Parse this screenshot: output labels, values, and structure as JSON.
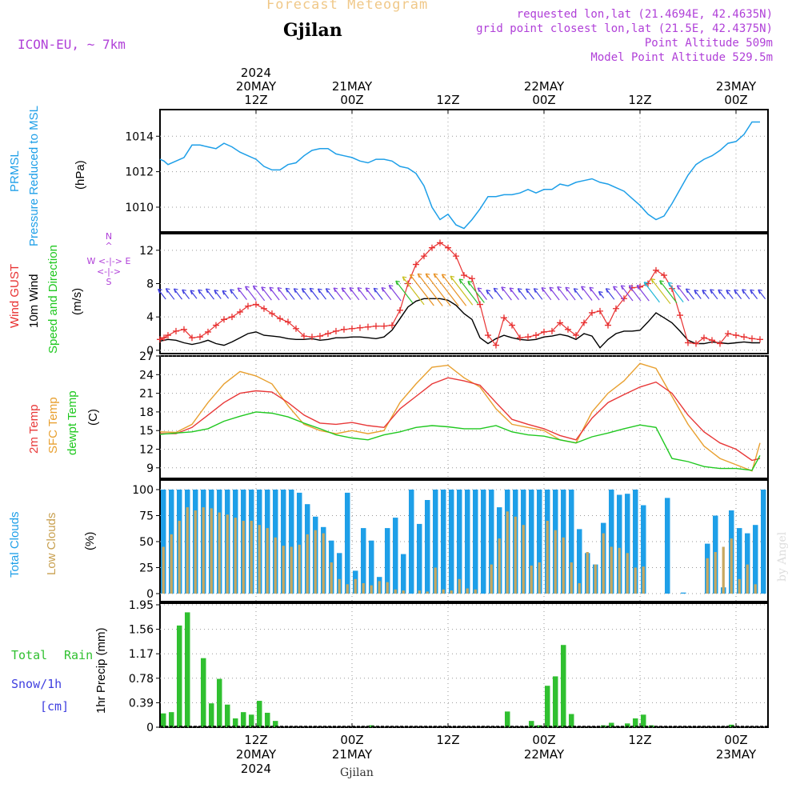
{
  "header": {
    "title": "Forecast Meteogram",
    "location": "Gjilan",
    "model": "ICON-EU, ~ 7km",
    "requested": "requested lon,lat (21.4694E, 42.4635N)",
    "grid_point": "grid point closest lon,lat (21.5E, 42.4375N)",
    "point_altitude": "Point Altitude 509m",
    "model_altitude": "Model Point Altitude 529.5m"
  },
  "footer": {
    "location": "Gjilan",
    "credit": "by Angel"
  },
  "time_axis": {
    "top_labels": [
      {
        "time": 12,
        "lines": [
          "2024",
          "20MAY",
          "12Z"
        ]
      },
      {
        "time": 24,
        "lines": [
          "21MAY",
          "00Z"
        ]
      },
      {
        "time": 36,
        "lines": [
          "12Z"
        ]
      },
      {
        "time": 48,
        "lines": [
          "22MAY",
          "00Z"
        ]
      },
      {
        "time": 60,
        "lines": [
          "12Z"
        ]
      },
      {
        "time": 72,
        "lines": [
          "23MAY",
          "00Z"
        ]
      }
    ],
    "bottom_labels": [
      {
        "time": 12,
        "lines": [
          "12Z",
          "20MAY",
          "2024"
        ]
      },
      {
        "time": 24,
        "lines": [
          "00Z",
          "21MAY"
        ]
      },
      {
        "time": 36,
        "lines": [
          "12Z"
        ]
      },
      {
        "time": 48,
        "lines": [
          "00Z",
          "22MAY"
        ]
      },
      {
        "time": 60,
        "lines": [
          "12Z"
        ]
      },
      {
        "time": 72,
        "lines": [
          "00Z",
          "23MAY"
        ]
      }
    ]
  },
  "panel_labels": {
    "pressure": {
      "name": "PRMSL",
      "desc": "Pressure Reduced to MSL",
      "unit": "(hPa)"
    },
    "wind": {
      "gust": "Wind GUST",
      "wind10": "10m Wind",
      "dir": "Speed and Direction",
      "unit": "(m/s)"
    },
    "compass": {
      "n": "N",
      "s": "S",
      "e": "E",
      "w": "W",
      "row1": "W <-|-> E",
      "row2": "<-|->"
    },
    "temp": {
      "t2m": "2m Temp",
      "sfc": "SFC Temp",
      "dewpt": "dewpt Temp",
      "unit": "(C)"
    },
    "clouds": {
      "total": "Total Clouds",
      "low": "Low Clouds",
      "unit": "(%)"
    },
    "precip": {
      "total": "Total",
      "rain": "Rain",
      "snow": "Snow/1h",
      "snow_unit": "[cm]",
      "unit": "1hr Precip (mm)"
    }
  },
  "colors": {
    "pressure": "#1e9fe8",
    "gust": "#e83030",
    "wind10": "#000000",
    "t2m": "#e83838",
    "sfc": "#e8a030",
    "dewpt": "#20c820",
    "total_clouds": "#1e9fe8",
    "low_clouds": "#c8a860",
    "rain": "#30c030",
    "header": "#b040d8",
    "title": "#f0c888"
  },
  "chart_data": [
    {
      "type": "line",
      "panel": "pressure",
      "title": "PRMSL Pressure Reduced to MSL",
      "ylabel": "(hPa)",
      "ylim": [
        1008.6,
        1015.5
      ],
      "yticks": [
        1010,
        1012,
        1014
      ],
      "xlim": [
        0,
        76
      ],
      "x": [
        0,
        0.5,
        1,
        2,
        3,
        4,
        5,
        6,
        7,
        8,
        9,
        10,
        11,
        12,
        13,
        14,
        15,
        16,
        17,
        18,
        19,
        20,
        21,
        22,
        23,
        24,
        25,
        26,
        27,
        28,
        29,
        30,
        31,
        32,
        33,
        34,
        35,
        36,
        37,
        38,
        39,
        40,
        41,
        42,
        43,
        44,
        45,
        46,
        47,
        48,
        49,
        50,
        51,
        52,
        53,
        54,
        55,
        56,
        57,
        58,
        59,
        60,
        61,
        62,
        63,
        64,
        65,
        66,
        67,
        68,
        69,
        70,
        71,
        72,
        73,
        74,
        75
      ],
      "values": [
        1012.7,
        1012.6,
        1012.4,
        1012.6,
        1012.8,
        1013.5,
        1013.5,
        1013.4,
        1013.3,
        1013.6,
        1013.4,
        1013.1,
        1012.9,
        1012.7,
        1012.3,
        1012.1,
        1012.1,
        1012.4,
        1012.5,
        1012.9,
        1013.2,
        1013.3,
        1013.3,
        1013.0,
        1012.9,
        1012.8,
        1012.6,
        1012.5,
        1012.7,
        1012.7,
        1012.6,
        1012.3,
        1012.2,
        1011.9,
        1011.2,
        1010.0,
        1009.3,
        1009.6,
        1009.0,
        1008.8,
        1009.3,
        1009.9,
        1010.6,
        1010.6,
        1010.7,
        1010.7,
        1010.8,
        1011.0,
        1010.8,
        1011.0,
        1011.0,
        1011.3,
        1011.2,
        1011.4,
        1011.5,
        1011.6,
        1011.4,
        1011.3,
        1011.1,
        1010.9,
        1010.5,
        1010.1,
        1009.6,
        1009.3,
        1009.5,
        1010.2,
        1011.0,
        1011.8,
        1012.4,
        1012.7,
        1012.9,
        1013.2,
        1013.6,
        1013.7,
        1014.1,
        1014.8,
        1014.8
      ]
    },
    {
      "type": "line",
      "panel": "wind",
      "title": "Wind GUST / 10m Wind Speed and Direction",
      "ylabel": "(m/s)",
      "ylim": [
        0,
        14
      ],
      "yticks": [
        0,
        4,
        8,
        12
      ],
      "xlim": [
        0,
        76
      ],
      "x": [
        0,
        0.5,
        1,
        2,
        3,
        4,
        5,
        6,
        7,
        8,
        9,
        10,
        11,
        12,
        13,
        14,
        15,
        16,
        17,
        18,
        19,
        20,
        21,
        22,
        23,
        24,
        25,
        26,
        27,
        28,
        29,
        30,
        31,
        32,
        33,
        34,
        35,
        36,
        37,
        38,
        39,
        40,
        41,
        42,
        43,
        44,
        45,
        46,
        47,
        48,
        49,
        50,
        51,
        52,
        53,
        54,
        55,
        56,
        57,
        58,
        59,
        60,
        61,
        62,
        63,
        64,
        65,
        66,
        67,
        68,
        69,
        70,
        71,
        72,
        73,
        74,
        75
      ],
      "series": [
        {
          "name": "Wind GUST",
          "values": [
            1.3,
            1.5,
            1.8,
            2.3,
            2.5,
            1.5,
            1.6,
            2.2,
            3.0,
            3.7,
            4.0,
            4.6,
            5.3,
            5.5,
            5.0,
            4.4,
            3.8,
            3.4,
            2.6,
            1.7,
            1.6,
            1.7,
            2.0,
            2.3,
            2.5,
            2.6,
            2.7,
            2.8,
            2.9,
            2.9,
            3.0,
            4.8,
            8.0,
            10.3,
            11.3,
            12.3,
            12.9,
            12.3,
            11.3,
            9.0,
            8.6,
            5.5,
            1.8,
            0.6,
            3.9,
            3.0,
            1.5,
            1.6,
            1.8,
            2.2,
            2.3,
            3.3,
            2.5,
            1.8,
            3.3,
            4.5,
            4.7,
            3.0,
            5.0,
            6.2,
            7.5,
            7.6,
            8.0,
            9.6,
            9.0,
            7.4,
            4.2,
            0.9,
            0.8,
            1.5,
            1.2,
            0.8,
            2.0,
            1.8,
            1.6,
            1.4,
            1.3
          ]
        },
        {
          "name": "10m Wind",
          "values": [
            1.1,
            1.2,
            1.3,
            1.2,
            0.9,
            0.7,
            0.9,
            1.2,
            0.8,
            0.6,
            1.0,
            1.5,
            2.0,
            2.2,
            1.8,
            1.7,
            1.6,
            1.4,
            1.3,
            1.3,
            1.4,
            1.2,
            1.3,
            1.5,
            1.5,
            1.6,
            1.6,
            1.5,
            1.4,
            1.6,
            2.4,
            3.8,
            5.2,
            5.9,
            6.2,
            6.2,
            6.2,
            6.0,
            5.4,
            4.4,
            3.7,
            1.5,
            0.8,
            1.4,
            1.8,
            1.5,
            1.3,
            1.2,
            1.3,
            1.6,
            1.7,
            1.9,
            1.7,
            1.3,
            2.0,
            1.7,
            0.3,
            1.3,
            2.0,
            2.3,
            2.3,
            2.4,
            3.4,
            4.5,
            3.9,
            3.3,
            2.3,
            1.2,
            0.8,
            0.8,
            1.0,
            0.9,
            0.8,
            0.9,
            1.0,
            0.9,
            0.9
          ]
        }
      ]
    },
    {
      "type": "line",
      "panel": "temperature",
      "title": "2m Temp / SFC Temp / dewpt Temp",
      "ylabel": "(C)",
      "ylim": [
        7.3,
        27
      ],
      "yticks": [
        9,
        12,
        15,
        18,
        21,
        24,
        27
      ],
      "xlim": [
        0,
        76
      ],
      "x": [
        0,
        2,
        4,
        6,
        8,
        10,
        12,
        14,
        16,
        18,
        20,
        22,
        24,
        26,
        28,
        30,
        32,
        34,
        36,
        38,
        40,
        42,
        44,
        46,
        48,
        50,
        52,
        54,
        56,
        58,
        60,
        62,
        64,
        66,
        68,
        70,
        72,
        74,
        75
      ],
      "series": [
        {
          "name": "2m Temp",
          "values": [
            14.5,
            14.5,
            15.5,
            17.5,
            19.5,
            21,
            21.4,
            21.2,
            19.5,
            17.5,
            16.2,
            16.0,
            16.3,
            15.8,
            15.5,
            18.5,
            20.5,
            22.5,
            23.5,
            23.0,
            22.3,
            19.5,
            16.8,
            16.0,
            15.3,
            14.2,
            13.5,
            17.0,
            19.5,
            20.8,
            22.0,
            22.8,
            21.0,
            17.5,
            14.8,
            13.0,
            12.0,
            10.2,
            10.5
          ]
        },
        {
          "name": "SFC Temp",
          "values": [
            14.8,
            14.7,
            16.0,
            19.5,
            22.5,
            24.5,
            23.8,
            22.5,
            19.0,
            16.0,
            15.0,
            14.5,
            15.0,
            14.5,
            15.0,
            19.5,
            22.5,
            25.2,
            25.5,
            23.5,
            22.0,
            18.5,
            16.0,
            15.5,
            15.0,
            13.5,
            13.0,
            18.0,
            21.0,
            23.0,
            25.8,
            25.0,
            20.5,
            16.0,
            12.5,
            10.5,
            9.5,
            8.5,
            13.0
          ]
        },
        {
          "name": "dewpt Temp",
          "values": [
            14.4,
            14.6,
            14.8,
            15.3,
            16.5,
            17.3,
            18.0,
            17.8,
            17.2,
            16.2,
            15.3,
            14.3,
            13.8,
            13.5,
            14.3,
            14.8,
            15.5,
            15.8,
            15.6,
            15.3,
            15.3,
            15.8,
            14.8,
            14.3,
            14.1,
            13.5,
            13.0,
            14.0,
            14.6,
            15.3,
            15.9,
            15.5,
            10.5,
            10.0,
            9.2,
            8.9,
            8.9,
            8.6,
            11.0
          ]
        }
      ]
    },
    {
      "type": "bar",
      "panel": "clouds",
      "title": "Total Clouds / Low Clouds",
      "ylabel": "(%)",
      "ylim": [
        0,
        100
      ],
      "yticks": [
        0,
        25,
        50,
        75,
        100
      ],
      "xlim": [
        0,
        76
      ],
      "categories": [
        0,
        1,
        2,
        3,
        4,
        5,
        6,
        7,
        8,
        9,
        10,
        11,
        12,
        13,
        14,
        15,
        16,
        17,
        18,
        19,
        20,
        21,
        22,
        23,
        24,
        25,
        26,
        27,
        28,
        29,
        30,
        31,
        32,
        33,
        34,
        35,
        36,
        37,
        38,
        39,
        40,
        41,
        42,
        43,
        44,
        45,
        46,
        47,
        48,
        49,
        50,
        51,
        52,
        53,
        54,
        55,
        56,
        57,
        58,
        59,
        60,
        61,
        62,
        63,
        64,
        65,
        66,
        67,
        68,
        69,
        70,
        71,
        72,
        73,
        74,
        75
      ],
      "series": [
        {
          "name": "Total Clouds",
          "values": [
            100,
            100,
            100,
            100,
            100,
            100,
            100,
            100,
            100,
            100,
            100,
            100,
            100,
            100,
            100,
            100,
            100,
            97,
            86,
            74,
            64,
            51,
            39,
            97,
            22,
            63,
            51,
            16,
            63,
            73,
            38,
            100,
            67,
            90,
            100,
            100,
            100,
            100,
            100,
            100,
            100,
            100,
            83,
            100,
            100,
            100,
            100,
            100,
            100,
            100,
            100,
            100,
            62,
            39,
            28,
            68,
            100,
            95,
            96,
            100,
            85,
            0,
            0,
            92,
            0,
            1,
            0,
            0,
            48,
            75,
            6,
            80,
            63,
            58,
            66,
            100
          ]
        },
        {
          "name": "Low Clouds",
          "values": [
            45,
            57,
            70,
            83,
            80,
            83,
            82,
            78,
            76,
            73,
            70,
            70,
            66,
            63,
            54,
            46,
            45,
            47,
            57,
            61,
            58,
            30,
            14,
            9,
            14,
            10,
            8,
            12,
            11,
            4,
            3,
            0,
            3,
            2,
            25,
            4,
            3,
            14,
            5,
            4,
            0,
            28,
            53,
            79,
            74,
            66,
            27,
            30,
            70,
            61,
            54,
            30,
            10,
            40,
            28,
            58,
            45,
            44,
            39,
            25,
            26,
            0,
            0,
            0,
            0,
            0,
            0,
            0,
            34,
            40,
            45,
            53,
            14,
            28,
            9,
            0
          ]
        }
      ]
    },
    {
      "type": "bar",
      "panel": "precip",
      "title": "Total Rain Snow/1h [cm]",
      "ylabel": "1hr Precip (mm)",
      "ylim": [
        0,
        1.95
      ],
      "yticks": [
        0,
        0.39,
        0.78,
        1.17,
        1.56,
        1.95
      ],
      "xlim": [
        0,
        76
      ],
      "categories": [
        0,
        1,
        2,
        3,
        4,
        5,
        6,
        7,
        8,
        9,
        10,
        11,
        12,
        13,
        14,
        15,
        16,
        17,
        18,
        19,
        20,
        21,
        22,
        23,
        24,
        25,
        26,
        27,
        28,
        29,
        30,
        31,
        32,
        33,
        34,
        35,
        36,
        37,
        38,
        39,
        40,
        41,
        42,
        43,
        44,
        45,
        46,
        47,
        48,
        49,
        50,
        51,
        52,
        53,
        54,
        55,
        56,
        57,
        58,
        59,
        60,
        61,
        62,
        63,
        64,
        65,
        66,
        67,
        68,
        69,
        70,
        71,
        72,
        73,
        74,
        75
      ],
      "series": [
        {
          "name": "Total Rain",
          "values": [
            0.22,
            0.24,
            1.62,
            1.83,
            0,
            1.1,
            0.38,
            0.77,
            0.36,
            0.14,
            0.24,
            0.2,
            0.42,
            0.23,
            0.1,
            0,
            0,
            0,
            0,
            0,
            0,
            0,
            0,
            0,
            0,
            0,
            0.03,
            0,
            0,
            0,
            0,
            0,
            0,
            0,
            0,
            0,
            0,
            0,
            0,
            0,
            0,
            0,
            0,
            0.25,
            0,
            0,
            0.1,
            0.03,
            0.66,
            0.81,
            1.31,
            0.21,
            0,
            0,
            0,
            0.03,
            0.07,
            0,
            0.06,
            0.14,
            0.2,
            0.03,
            0,
            0,
            0,
            0,
            0,
            0,
            0,
            0,
            0,
            0.04,
            0,
            0,
            0,
            0
          ]
        }
      ]
    }
  ]
}
